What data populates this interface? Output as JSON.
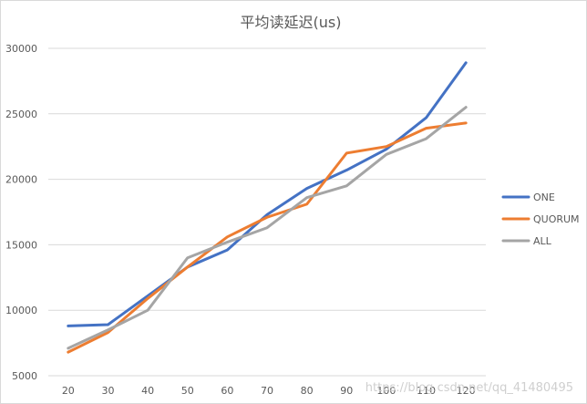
{
  "watermark": "https://blog.csdn.net/qq_41480495",
  "chart_data": {
    "type": "line",
    "title": "平均读延迟(us)",
    "xlabel": "",
    "ylabel": "",
    "categories": [
      "20",
      "30",
      "40",
      "50",
      "60",
      "70",
      "80",
      "90",
      "100",
      "110",
      "120"
    ],
    "ylim": [
      5000,
      30000
    ],
    "yticks": [
      5000,
      10000,
      15000,
      20000,
      25000,
      30000
    ],
    "grid": "horizontal",
    "legend_position": "right",
    "series": [
      {
        "name": "ONE",
        "color": "#4472c4",
        "values": [
          8800,
          8900,
          11100,
          13300,
          14600,
          17300,
          19300,
          20700,
          22300,
          24700,
          28900
        ]
      },
      {
        "name": "QUORUM",
        "color": "#ed7d31",
        "values": [
          6800,
          8300,
          10900,
          13300,
          15600,
          17100,
          18100,
          22000,
          22500,
          23900,
          24300
        ]
      },
      {
        "name": "ALL",
        "color": "#a5a5a5",
        "values": [
          7100,
          8500,
          10000,
          14000,
          15200,
          16300,
          18600,
          19500,
          21900,
          23100,
          25500
        ]
      }
    ]
  }
}
